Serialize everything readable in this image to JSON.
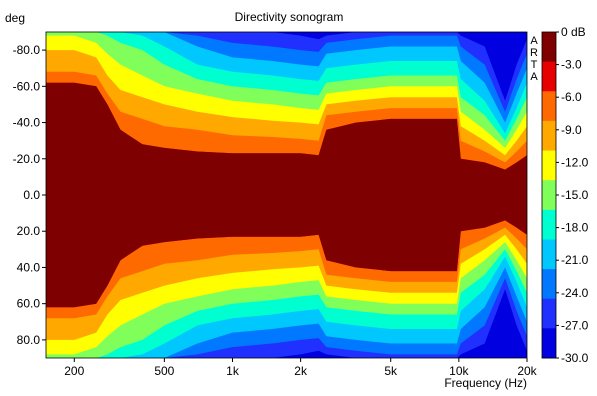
{
  "chart_data": {
    "type": "heatmap",
    "title": "Directivity sonogram",
    "ylabel": "deg",
    "xlabel": "Frequency (Hz)",
    "watermark": "ARTA",
    "x_scale": "log",
    "xlim": [
      150,
      20000
    ],
    "ylim": [
      -90,
      90
    ],
    "y_axis_direction": "down",
    "x_ticks": [
      {
        "value": 200,
        "label": "200"
      },
      {
        "value": 500,
        "label": "500"
      },
      {
        "value": 1000,
        "label": "1k"
      },
      {
        "value": 2000,
        "label": "2k"
      },
      {
        "value": 5000,
        "label": "5k"
      },
      {
        "value": 10000,
        "label": "10k"
      },
      {
        "value": 20000,
        "label": "20k"
      }
    ],
    "y_ticks": [
      {
        "value": -80,
        "label": "-80.0"
      },
      {
        "value": -60,
        "label": "-60.0"
      },
      {
        "value": -40,
        "label": "-40.0"
      },
      {
        "value": -20,
        "label": "-20.0"
      },
      {
        "value": 0,
        "label": "0.0"
      },
      {
        "value": 20,
        "label": "20.0"
      },
      {
        "value": 40,
        "label": "40.0"
      },
      {
        "value": 60,
        "label": "60.0"
      },
      {
        "value": 80,
        "label": "80.0"
      }
    ],
    "colorbar": {
      "unit_label": "0 dB",
      "levels": [
        {
          "label": "0 dB",
          "value": 0,
          "color": "#7f0000"
        },
        {
          "label": "-3.0",
          "value": -3,
          "color": "#e60000"
        },
        {
          "label": "-6.0",
          "value": -6,
          "color": "#ff6a00"
        },
        {
          "label": "-9.0",
          "value": -9,
          "color": "#ffa800"
        },
        {
          "label": "-12.0",
          "value": -12,
          "color": "#ffff00"
        },
        {
          "label": "-15.0",
          "value": -15,
          "color": "#80ff5a"
        },
        {
          "label": "-18.0",
          "value": -18,
          "color": "#00ffd0"
        },
        {
          "label": "-21.0",
          "value": -21,
          "color": "#00c8ff"
        },
        {
          "label": "-24.0",
          "value": -24,
          "color": "#0078ff"
        },
        {
          "label": "-27.0",
          "value": -27,
          "color": "#2030ff"
        },
        {
          "label": "-30.0",
          "value": -30,
          "color": "#0000e0"
        }
      ]
    },
    "contour_half_widths_deg": {
      "note_levels_db": [
        -3,
        -6,
        -9,
        -12,
        -15,
        -18,
        -21,
        -24,
        -27
      ],
      "points": [
        {
          "freq": 150,
          "widths": [
            62,
            68,
            80,
            88,
            90,
            90,
            90,
            90,
            90
          ]
        },
        {
          "freq": 200,
          "widths": [
            62,
            68,
            80,
            88,
            90,
            90,
            90,
            90,
            90
          ]
        },
        {
          "freq": 250,
          "widths": [
            60,
            66,
            76,
            84,
            90,
            90,
            90,
            90,
            90
          ]
        },
        {
          "freq": 280,
          "widths": [
            50,
            56,
            66,
            78,
            88,
            90,
            90,
            90,
            90
          ]
        },
        {
          "freq": 320,
          "widths": [
            36,
            46,
            58,
            72,
            84,
            90,
            90,
            90,
            90
          ]
        },
        {
          "freq": 400,
          "widths": [
            28,
            42,
            54,
            66,
            80,
            88,
            90,
            90,
            90
          ]
        },
        {
          "freq": 500,
          "widths": [
            26,
            38,
            50,
            60,
            72,
            82,
            90,
            90,
            90
          ]
        },
        {
          "freq": 700,
          "widths": [
            24,
            36,
            46,
            56,
            64,
            72,
            82,
            88,
            90
          ]
        },
        {
          "freq": 1000,
          "widths": [
            23,
            33,
            43,
            52,
            60,
            68,
            76,
            84,
            90
          ]
        },
        {
          "freq": 1500,
          "widths": [
            23,
            32,
            41,
            50,
            58,
            66,
            74,
            82,
            90
          ]
        },
        {
          "freq": 2000,
          "widths": [
            23,
            31,
            40,
            48,
            56,
            64,
            72,
            80,
            88
          ]
        },
        {
          "freq": 2400,
          "widths": [
            22,
            30,
            39,
            47,
            55,
            63,
            71,
            79,
            86
          ]
        },
        {
          "freq": 2600,
          "widths": [
            36,
            44,
            50,
            56,
            62,
            70,
            78,
            84,
            88
          ]
        },
        {
          "freq": 3500,
          "widths": [
            40,
            46,
            52,
            58,
            64,
            72,
            80,
            86,
            90
          ]
        },
        {
          "freq": 5000,
          "widths": [
            42,
            48,
            54,
            60,
            66,
            74,
            82,
            88,
            90
          ]
        },
        {
          "freq": 7000,
          "widths": [
            42,
            48,
            54,
            60,
            66,
            74,
            82,
            88,
            90
          ]
        },
        {
          "freq": 9800,
          "widths": [
            42,
            48,
            54,
            60,
            66,
            74,
            82,
            88,
            90
          ]
        },
        {
          "freq": 10200,
          "widths": [
            20,
            30,
            38,
            46,
            54,
            64,
            74,
            82,
            88
          ]
        },
        {
          "freq": 13000,
          "widths": [
            18,
            24,
            30,
            36,
            44,
            52,
            62,
            72,
            82
          ]
        },
        {
          "freq": 16000,
          "widths": [
            14,
            18,
            22,
            26,
            30,
            34,
            40,
            46,
            52
          ]
        },
        {
          "freq": 18000,
          "widths": [
            18,
            24,
            30,
            36,
            42,
            48,
            56,
            64,
            72
          ]
        },
        {
          "freq": 20000,
          "widths": [
            22,
            30,
            38,
            46,
            54,
            62,
            70,
            78,
            86
          ]
        }
      ]
    }
  }
}
